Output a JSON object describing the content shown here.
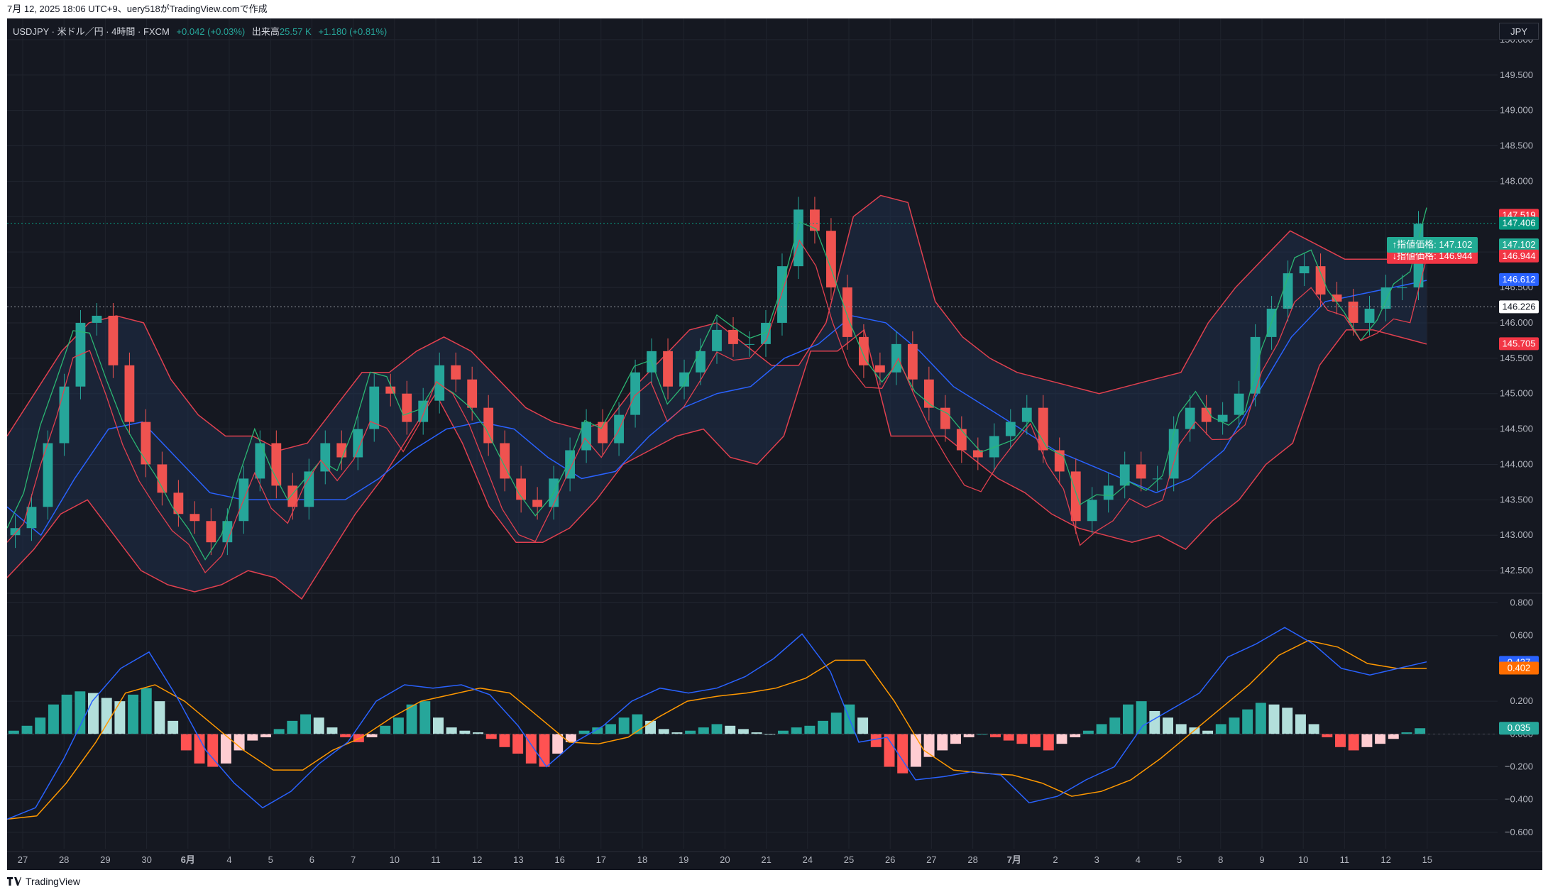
{
  "header": {
    "caption": "7月 12, 2025 18:06 UTC+9、uery518がTradingView.comで作成"
  },
  "legend": {
    "symbol": "USDJPY · 米ドル／円 · 4時間 · FXCM",
    "change": "+0.042 (+0.03%)",
    "volume_label": "出来高",
    "volume_value": "25.57 K",
    "change2": "+1.180 (+0.81%)"
  },
  "currency": "JPY",
  "colors": {
    "background": "#151821",
    "up": "#26a69a",
    "down": "#ef5350",
    "bb_band": "#e0404f",
    "ma": "#2962ff",
    "macd_line": "#2962ff",
    "signal_line": "#ff9800"
  },
  "price_axis": {
    "ticks": [
      "150.000",
      "149.500",
      "149.000",
      "148.500",
      "148.000",
      "147.500",
      "147.000",
      "146.500",
      "146.000",
      "145.500",
      "145.000",
      "144.500",
      "144.000",
      "143.500",
      "143.000",
      "142.500"
    ],
    "labels": [
      {
        "text": "147.519",
        "color": "#f23645",
        "value": 147.519
      },
      {
        "text": "147.406",
        "color": "#089981",
        "value": 147.406
      },
      {
        "text": "147.102",
        "color": "#22ab94",
        "value": 147.102
      },
      {
        "text": "146.944",
        "color": "#f23645",
        "value": 146.944
      },
      {
        "text": "146.612",
        "color": "#2962ff",
        "value": 146.612
      },
      {
        "text": "146.226",
        "color": "#ffffff",
        "value": 146.226
      },
      {
        "text": "145.705",
        "color": "#f23645",
        "value": 145.705
      }
    ],
    "order_tags": [
      {
        "text": "↓指値価格: 146.944",
        "color": "#f23645",
        "value": 146.944
      },
      {
        "text": "↑指値価格: 147.102",
        "color": "#22ab94",
        "value": 147.102
      }
    ]
  },
  "macd_axis": {
    "ticks": [
      "0.800",
      "0.600",
      "0.200",
      "0.000",
      "−0.200",
      "−0.400",
      "−0.600"
    ],
    "labels": [
      {
        "text": "0.437",
        "color": "#2962ff",
        "value": 0.437
      },
      {
        "text": "0.402",
        "color": "#ff6d00",
        "value": 0.402
      },
      {
        "text": "0.035",
        "color": "#26a69a",
        "value": 0.035
      }
    ]
  },
  "time_axis": [
    "27",
    "28",
    "29",
    "30",
    "6月",
    "4",
    "5",
    "6",
    "7",
    "10",
    "11",
    "12",
    "13",
    "16",
    "17",
    "18",
    "19",
    "20",
    "21",
    "24",
    "25",
    "26",
    "27",
    "28",
    "7月",
    "2",
    "3",
    "4",
    "5",
    "8",
    "9",
    "10",
    "11",
    "12",
    "15"
  ],
  "footer": {
    "brand": "TradingView"
  },
  "chart_data": [
    {
      "type": "line",
      "title": "USDJPY · 米ドル／円 · 4時間 · FXCM",
      "ylim": [
        142.2,
        150.3
      ],
      "series": [
        {
          "name": "close",
          "values": [
            143.1,
            143.4,
            144.3,
            145.1,
            146.0,
            146.1,
            145.4,
            144.6,
            144.0,
            143.6,
            143.3,
            143.2,
            142.9,
            143.2,
            143.8,
            144.3,
            143.7,
            143.4,
            143.9,
            144.3,
            144.1,
            144.5,
            145.1,
            145.0,
            144.6,
            144.9,
            145.4,
            145.2,
            144.8,
            144.3,
            143.8,
            143.5,
            143.4,
            143.8,
            144.2,
            144.6,
            144.3,
            144.7,
            145.3,
            145.6,
            145.1,
            145.3,
            145.6,
            145.9,
            145.7,
            145.7,
            146.0,
            146.8,
            147.6,
            147.3,
            146.5,
            145.8,
            145.4,
            145.3,
            145.7,
            145.2,
            144.8,
            144.5,
            144.2,
            144.1,
            144.4,
            144.6,
            144.8,
            144.2,
            143.9,
            143.2,
            143.5,
            143.7,
            144.0,
            143.8,
            143.8,
            144.5,
            144.8,
            144.6,
            144.7,
            145.0,
            145.8,
            146.2,
            146.7,
            146.8,
            146.4,
            146.3,
            146.0,
            146.2,
            146.5,
            146.5,
            147.4
          ]
        },
        {
          "name": "bb_upper",
          "values": [
            144.4,
            145.0,
            145.6,
            146.0,
            146.1,
            146.0,
            145.2,
            144.7,
            144.4,
            144.4,
            144.2,
            144.3,
            144.8,
            145.3,
            145.3,
            145.6,
            145.8,
            145.6,
            145.2,
            144.8,
            144.6,
            144.5,
            144.6,
            145.1,
            145.5,
            145.9,
            146.0,
            145.7,
            145.4,
            145.4,
            146.0,
            147.5,
            147.8,
            147.7,
            146.3,
            145.8,
            145.5,
            145.3,
            145.2,
            145.1,
            145.0,
            145.1,
            145.2,
            145.3,
            146.0,
            146.5,
            146.9,
            147.3,
            147.1,
            146.9,
            146.9,
            146.9,
            146.9
          ]
        },
        {
          "name": "bb_lower",
          "values": [
            142.4,
            142.8,
            143.3,
            143.5,
            143.0,
            142.5,
            142.3,
            142.2,
            142.3,
            142.5,
            142.4,
            142.1,
            142.7,
            143.3,
            143.8,
            144.4,
            145.0,
            144.3,
            143.4,
            142.9,
            142.9,
            143.1,
            143.5,
            144.0,
            144.2,
            144.4,
            144.5,
            144.1,
            144.0,
            144.4,
            145.6,
            145.6,
            145.9,
            144.4,
            144.4,
            144.4,
            144.1,
            143.8,
            143.6,
            143.3,
            143.1,
            143.0,
            142.9,
            143.0,
            142.8,
            143.2,
            143.5,
            144.0,
            144.3,
            145.4,
            145.9,
            145.9,
            145.8,
            145.7
          ]
        },
        {
          "name": "ma",
          "values": [
            143.4,
            143.0,
            143.8,
            144.5,
            144.6,
            144.1,
            143.6,
            143.5,
            143.5,
            143.5,
            143.5,
            143.8,
            144.2,
            144.5,
            144.6,
            144.5,
            144.1,
            143.8,
            143.9,
            144.4,
            144.8,
            145.0,
            145.1,
            145.5,
            145.7,
            146.1,
            146.0,
            145.6,
            145.1,
            144.8,
            144.5,
            144.2,
            144.0,
            143.8,
            143.6,
            143.8,
            144.2,
            145.0,
            145.8,
            146.3,
            146.4,
            146.5,
            146.6
          ]
        }
      ]
    },
    {
      "type": "line",
      "title": "MACD",
      "ylim": [
        -0.7,
        0.85
      ],
      "series": [
        {
          "name": "macd",
          "values": [
            -0.52,
            -0.45,
            -0.15,
            0.2,
            0.4,
            0.5,
            0.22,
            -0.1,
            -0.3,
            -0.45,
            -0.35,
            -0.18,
            -0.05,
            0.2,
            0.3,
            0.28,
            0.3,
            0.24,
            0.05,
            -0.2,
            -0.05,
            0.05,
            0.2,
            0.28,
            0.25,
            0.28,
            0.35,
            0.46,
            0.61,
            0.38,
            -0.05,
            -0.02,
            -0.28,
            -0.26,
            -0.23,
            -0.25,
            -0.42,
            -0.38,
            -0.28,
            -0.2,
            0.05,
            0.15,
            0.25,
            0.47,
            0.55,
            0.65,
            0.55,
            0.4,
            0.36,
            0.4,
            0.44
          ]
        },
        {
          "name": "signal",
          "values": [
            -0.52,
            -0.5,
            -0.3,
            -0.05,
            0.25,
            0.3,
            0.2,
            0.05,
            -0.1,
            -0.22,
            -0.22,
            -0.1,
            -0.02,
            0.1,
            0.2,
            0.24,
            0.28,
            0.25,
            0.1,
            -0.05,
            -0.06,
            -0.02,
            0.1,
            0.2,
            0.23,
            0.25,
            0.28,
            0.34,
            0.45,
            0.45,
            0.2,
            -0.1,
            -0.22,
            -0.24,
            -0.25,
            -0.3,
            -0.38,
            -0.35,
            -0.28,
            -0.15,
            0.0,
            0.15,
            0.3,
            0.48,
            0.57,
            0.53,
            0.43,
            0.4,
            0.4
          ]
        },
        {
          "name": "histogram",
          "values": [
            0.02,
            0.05,
            0.1,
            0.18,
            0.24,
            0.26,
            0.25,
            0.22,
            0.2,
            0.24,
            0.28,
            0.2,
            0.08,
            -0.1,
            -0.18,
            -0.2,
            -0.18,
            -0.1,
            -0.04,
            -0.02,
            0.03,
            0.08,
            0.12,
            0.1,
            0.04,
            -0.02,
            -0.05,
            -0.02,
            0.05,
            0.1,
            0.18,
            0.2,
            0.1,
            0.04,
            0.02,
            0.01,
            -0.03,
            -0.08,
            -0.12,
            -0.18,
            -0.2,
            -0.12,
            -0.05,
            0.02,
            0.04,
            0.06,
            0.1,
            0.12,
            0.08,
            0.03,
            0.01,
            0.02,
            0.04,
            0.06,
            0.05,
            0.03,
            0.01,
            0.0,
            0.02,
            0.04,
            0.05,
            0.08,
            0.13,
            0.18,
            0.1,
            -0.08,
            -0.2,
            -0.24,
            -0.2,
            -0.14,
            -0.1,
            -0.06,
            -0.02,
            0.0,
            -0.02,
            -0.04,
            -0.06,
            -0.08,
            -0.1,
            -0.06,
            -0.02,
            0.02,
            0.06,
            0.1,
            0.18,
            0.2,
            0.14,
            0.1,
            0.06,
            0.04,
            0.02,
            0.06,
            0.1,
            0.15,
            0.19,
            0.18,
            0.16,
            0.12,
            0.06,
            -0.02,
            -0.08,
            -0.1,
            -0.08,
            -0.06,
            -0.03,
            0.01,
            0.035
          ]
        }
      ]
    }
  ]
}
